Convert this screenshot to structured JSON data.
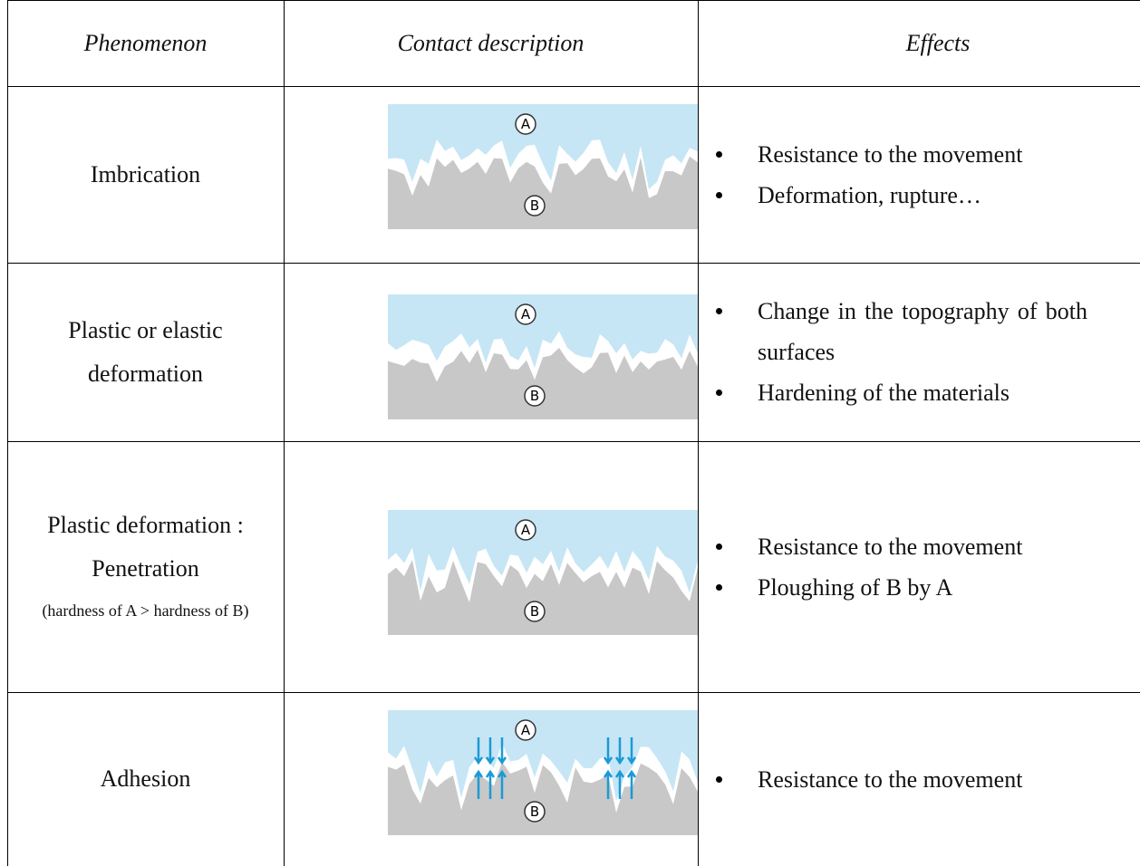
{
  "table": {
    "header": [
      "Phenomenon",
      "Contact description",
      "Effects"
    ],
    "rows": [
      {
        "phenomenon": [
          "Imbrication"
        ],
        "diagram": {
          "top_label": "A",
          "bottom_label": "B"
        },
        "effects": [
          "Resistance to the movement",
          "Deformation, rupture…"
        ]
      },
      {
        "phenomenon": [
          "Plastic or elastic",
          "deformation"
        ],
        "diagram": {
          "top_label": "A",
          "bottom_label": "B"
        },
        "effects": [
          "Change in the topography of both surfaces",
          "Hardening of the materials"
        ]
      },
      {
        "phenomenon": [
          "Plastic deformation :",
          "Penetration"
        ],
        "note": "(hardness of A > hardness of B)",
        "diagram": {
          "top_label": "A",
          "bottom_label": "B"
        },
        "effects": [
          "Resistance to the movement",
          "Ploughing of B by A"
        ]
      },
      {
        "phenomenon": [
          "Adhesion"
        ],
        "diagram": {
          "top_label": "A",
          "bottom_label": "B"
        },
        "effects": [
          "Resistance to the movement"
        ]
      }
    ]
  }
}
